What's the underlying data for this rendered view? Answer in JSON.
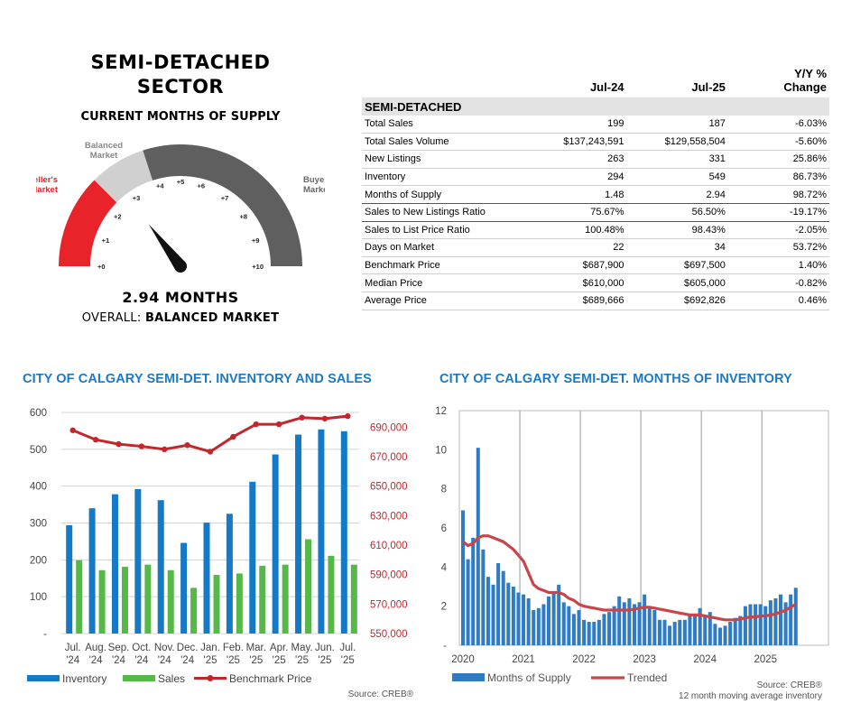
{
  "gauge": {
    "title_line1": "SEMI-DETACHED",
    "title_line2": "SECTOR",
    "subtitle": "CURRENT MONTHS OF SUPPLY",
    "value_text": "2.94 MONTHS",
    "overall_label": "OVERALL:",
    "overall_value": "BALANCED MARKET",
    "value": 2.94,
    "min": 0,
    "max": 10,
    "zones": [
      {
        "label_line1": "Seller's",
        "label_line2": "Market",
        "from": 0,
        "to": 2.5,
        "color": "#e8232a"
      },
      {
        "label_line1": "Balanced",
        "label_line2": "Market",
        "from": 2.5,
        "to": 4,
        "color": "#d0d0d0"
      },
      {
        "label_line1": "Buyer's",
        "label_line2": "Market",
        "from": 4,
        "to": 10,
        "color": "#5f5f5f"
      }
    ],
    "ticks": [
      "+0",
      "+1",
      "+2",
      "+3",
      "+4",
      "+5",
      "+6",
      "+7",
      "+8",
      "+9",
      "+10"
    ]
  },
  "stats_table": {
    "col_headers": [
      "Jul-24",
      "Jul-25",
      "Y/Y %",
      "Change"
    ],
    "section": "SEMI-DETACHED",
    "rows": [
      {
        "label": "Total Sales",
        "a": "199",
        "b": "187",
        "c": "-6.03%"
      },
      {
        "label": "Total Sales Volume",
        "a": "$137,243,591",
        "b": "$129,558,504",
        "c": "-5.60%"
      },
      {
        "label": "New Listings",
        "a": "263",
        "b": "331",
        "c": "25.86%"
      },
      {
        "label": "Inventory",
        "a": "294",
        "b": "549",
        "c": "86.73%"
      },
      {
        "label": "Months of Supply",
        "a": "1.48",
        "b": "2.94",
        "c": "98.72%"
      },
      {
        "label": "Sales to New Listings Ratio",
        "a": "75.67%",
        "b": "56.50%",
        "c": "-19.17%"
      },
      {
        "label": "Sales to List Price Ratio",
        "a": "100.48%",
        "b": "98.43%",
        "c": "-2.05%"
      },
      {
        "label": "Days on Market",
        "a": "22",
        "b": "34",
        "c": "53.72%"
      },
      {
        "label": "Benchmark Price",
        "a": "$687,900",
        "b": "$697,500",
        "c": "1.40%"
      },
      {
        "label": "Median Price",
        "a": "$610,000",
        "b": "$605,000",
        "c": "-0.82%"
      },
      {
        "label": "Average Price",
        "a": "$689,666",
        "b": "$692,826",
        "c": "0.46%"
      }
    ]
  },
  "chart_data": [
    {
      "type": "bar",
      "title": "CITY OF CALGARY SEMI-DET. INVENTORY AND SALES",
      "categories": [
        {
          "m": "Jul.",
          "y": "'24"
        },
        {
          "m": "Aug.",
          "y": "'24"
        },
        {
          "m": "Sep.",
          "y": "'24"
        },
        {
          "m": "Oct.",
          "y": "'24"
        },
        {
          "m": "Nov.",
          "y": "'24"
        },
        {
          "m": "Dec.",
          "y": "'24"
        },
        {
          "m": "Jan.",
          "y": "'25"
        },
        {
          "m": "Feb.",
          "y": "'25"
        },
        {
          "m": "Mar.",
          "y": "'25"
        },
        {
          "m": "Apr.",
          "y": "'25"
        },
        {
          "m": "May.",
          "y": "'25"
        },
        {
          "m": "Jun.",
          "y": "'25"
        },
        {
          "m": "Jul.",
          "y": "'25"
        }
      ],
      "series": [
        {
          "name": "Inventory",
          "color": "#1479c6",
          "axis": "left",
          "values": [
            294,
            340,
            378,
            392,
            362,
            246,
            301,
            325,
            412,
            486,
            540,
            554,
            549
          ]
        },
        {
          "name": "Sales",
          "color": "#56b848",
          "axis": "left",
          "values": [
            199,
            172,
            181,
            187,
            172,
            124,
            159,
            163,
            184,
            187,
            256,
            211,
            187
          ]
        },
        {
          "name": "Benchmark Price",
          "color": "#c1272d",
          "axis": "right",
          "type": "line",
          "values": [
            687900,
            681500,
            678500,
            677000,
            675000,
            677800,
            673400,
            683500,
            692000,
            692000,
            696500,
            695800,
            697500
          ]
        }
      ],
      "ylim": [
        0,
        600
      ],
      "yticks": [
        "-",
        "100",
        "200",
        "300",
        "400",
        "500",
        "600"
      ],
      "y2lim": [
        550000,
        700000
      ],
      "y2ticks": [
        "550,000",
        "570,000",
        "590,000",
        "610,000",
        "630,000",
        "650,000",
        "670,000",
        "690,000"
      ],
      "source": "Source: CREB®",
      "grid": true,
      "legend": "bottom"
    },
    {
      "type": "bar",
      "title": "CITY OF CALGARY SEMI-DET. MONTHS OF INVENTORY",
      "years": [
        "2020",
        "2021",
        "2022",
        "2023",
        "2024",
        "2025"
      ],
      "ylim": [
        0,
        12
      ],
      "yticks": [
        "-",
        "2",
        "4",
        "6",
        "8",
        "10",
        "12"
      ],
      "series": [
        {
          "name": "Months of Supply",
          "color": "#2f7cc4",
          "values": [
            6.9,
            4.4,
            5.5,
            10.1,
            4.9,
            3.5,
            3.1,
            4.2,
            3.8,
            3.2,
            3.0,
            2.7,
            2.6,
            2.4,
            1.8,
            1.9,
            2.1,
            2.5,
            2.7,
            3.1,
            2.2,
            2.0,
            1.6,
            1.8,
            1.3,
            1.2,
            1.2,
            1.3,
            1.6,
            1.7,
            2.0,
            2.5,
            2.2,
            2.4,
            2.1,
            2.2,
            2.6,
            2.0,
            1.8,
            1.3,
            1.3,
            1.0,
            1.2,
            1.3,
            1.3,
            1.5,
            1.6,
            1.9,
            1.5,
            1.7,
            1.1,
            0.9,
            1.0,
            1.2,
            1.4,
            1.5,
            2.0,
            2.1,
            2.1,
            2.1,
            2.0,
            2.3,
            2.4,
            2.6,
            2.2,
            2.6,
            2.94
          ]
        },
        {
          "name": "Trended",
          "color": "#c8464a",
          "values": [
            5.3,
            5.1,
            5.2,
            5.5,
            5.6,
            5.6,
            5.5,
            5.4,
            5.3,
            5.1,
            4.9,
            4.6,
            4.3,
            3.7,
            3.1,
            2.9,
            2.8,
            2.7,
            2.7,
            2.7,
            2.6,
            2.4,
            2.3,
            2.1,
            2.0,
            1.95,
            1.9,
            1.85,
            1.8,
            1.8,
            1.8,
            1.8,
            1.8,
            1.8,
            1.85,
            1.9,
            1.95,
            1.95,
            1.9,
            1.85,
            1.8,
            1.75,
            1.7,
            1.65,
            1.6,
            1.55,
            1.55,
            1.55,
            1.5,
            1.45,
            1.4,
            1.35,
            1.3,
            1.3,
            1.3,
            1.35,
            1.4,
            1.45,
            1.45,
            1.5,
            1.5,
            1.55,
            1.6,
            1.7,
            1.8,
            1.95,
            2.1
          ]
        }
      ],
      "source_line1": "Source: CREB®",
      "source_line2": "12 month moving average inventory",
      "grid": true,
      "legend": "bottom"
    }
  ]
}
